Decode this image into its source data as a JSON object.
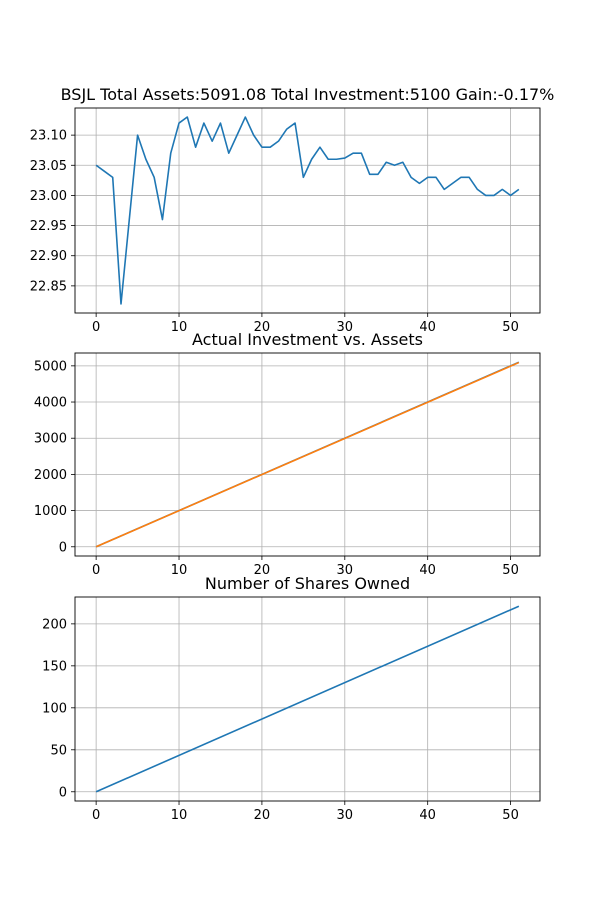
{
  "chart_data": [
    {
      "type": "line",
      "title": "BSJL Total Assets:5091.08  Total Investment:5100  Gain:-0.17%",
      "xlabel": "",
      "ylabel": "",
      "xlim": [
        -2.55,
        53.55
      ],
      "ylim": [
        22.805,
        23.145
      ],
      "xticks": [
        0,
        10,
        20,
        30,
        40,
        50
      ],
      "xtick_labels": [
        "0",
        "10",
        "20",
        "30",
        "40",
        "50"
      ],
      "yticks": [
        22.85,
        22.9,
        22.95,
        23.0,
        23.05,
        23.1
      ],
      "ytick_labels": [
        "22.85",
        "22.90",
        "22.95",
        "23.00",
        "23.05",
        "23.10"
      ],
      "grid": true,
      "series": [
        {
          "color": "#1f77b4",
          "x": [
            0,
            1,
            2,
            3,
            4,
            5,
            6,
            7,
            8,
            9,
            10,
            11,
            12,
            13,
            14,
            15,
            16,
            17,
            18,
            19,
            20,
            21,
            22,
            23,
            24,
            25,
            26,
            27,
            28,
            29,
            30,
            31,
            32,
            33,
            34,
            35,
            36,
            37,
            38,
            39,
            40,
            41,
            42,
            43,
            44,
            45,
            46,
            47,
            48,
            49,
            50,
            51
          ],
          "y": [
            23.05,
            23.04,
            23.03,
            22.82,
            22.96,
            23.1,
            23.06,
            23.03,
            22.96,
            23.07,
            23.12,
            23.13,
            23.08,
            23.12,
            23.09,
            23.12,
            23.07,
            23.1,
            23.13,
            23.1,
            23.08,
            23.08,
            23.09,
            23.11,
            23.12,
            23.03,
            23.06,
            23.08,
            23.06,
            23.06,
            23.062,
            23.07,
            23.07,
            23.035,
            23.035,
            23.055,
            23.05,
            23.055,
            23.03,
            23.02,
            23.03,
            23.03,
            23.01,
            23.02,
            23.03,
            23.03,
            23.01,
            23.0,
            23.0,
            23.01,
            23.0,
            23.01
          ]
        }
      ]
    },
    {
      "type": "line",
      "title": "Actual Investment vs. Assets",
      "xlabel": "",
      "ylabel": "",
      "xlim": [
        -2.55,
        53.55
      ],
      "ylim": [
        -255,
        5355
      ],
      "xticks": [
        0,
        10,
        20,
        30,
        40,
        50
      ],
      "xtick_labels": [
        "0",
        "10",
        "20",
        "30",
        "40",
        "50"
      ],
      "yticks": [
        0,
        1000,
        2000,
        3000,
        4000,
        5000
      ],
      "ytick_labels": [
        "0",
        "1000",
        "2000",
        "3000",
        "4000",
        "5000"
      ],
      "grid": true,
      "series": [
        {
          "color": "#1f77b4",
          "x": [
            0,
            51
          ],
          "y": [
            0,
            5100
          ]
        },
        {
          "color": "#ff7f0e",
          "x": [
            0,
            51
          ],
          "y": [
            0,
            5091.08
          ]
        }
      ]
    },
    {
      "type": "line",
      "title": "Number of Shares Owned",
      "xlabel": "",
      "ylabel": "",
      "xlim": [
        -2.55,
        53.55
      ],
      "ylim": [
        -11,
        232
      ],
      "xticks": [
        0,
        10,
        20,
        30,
        40,
        50
      ],
      "xtick_labels": [
        "0",
        "10",
        "20",
        "30",
        "40",
        "50"
      ],
      "yticks": [
        0,
        50,
        100,
        150,
        200
      ],
      "ytick_labels": [
        "0",
        "50",
        "100",
        "150",
        "200"
      ],
      "grid": true,
      "series": [
        {
          "color": "#1f77b4",
          "x": [
            0,
            51
          ],
          "y": [
            0,
            221
          ]
        }
      ]
    }
  ]
}
